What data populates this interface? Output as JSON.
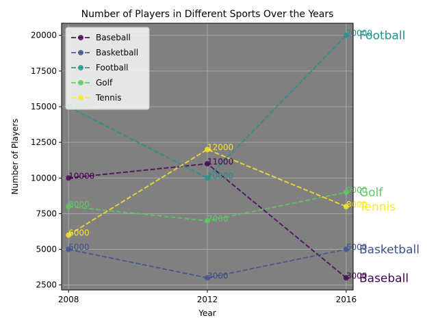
{
  "chart_data": {
    "type": "line",
    "title": "Number of Players in Different Sports Over the Years",
    "xlabel": "Year",
    "ylabel": "Number of Players",
    "x": [
      2008,
      2012,
      2016
    ],
    "x_tick_labels": [
      "2008",
      "2012",
      "2016"
    ],
    "ylim": [
      2150,
      20850
    ],
    "y_ticks": [
      2500,
      5000,
      7500,
      10000,
      12500,
      15000,
      17500,
      20000
    ],
    "y_tick_labels": [
      "2500",
      "5000",
      "7500",
      "10000",
      "12500",
      "15000",
      "17500",
      "20000"
    ],
    "grid": true,
    "legend_position": "top-left",
    "background_color": "#808080",
    "series": [
      {
        "name": "Baseball",
        "color": "#440154",
        "values": [
          10000,
          11000,
          3000
        ],
        "value_labels": [
          "10000",
          "11000",
          "3000"
        ]
      },
      {
        "name": "Basketball",
        "color": "#3b528b",
        "values": [
          5000,
          3000,
          5000
        ],
        "value_labels": [
          "5000",
          "3000",
          "5000"
        ]
      },
      {
        "name": "Football",
        "color": "#21918c",
        "values": [
          15000,
          10000,
          20000
        ],
        "value_labels": [
          "15000",
          "10000",
          "20000"
        ]
      },
      {
        "name": "Golf",
        "color": "#5ec962",
        "values": [
          8000,
          7000,
          9000
        ],
        "value_labels": [
          "8000",
          "7000",
          "9000"
        ]
      },
      {
        "name": "Tennis",
        "color": "#fde725",
        "values": [
          6000,
          12000,
          8000
        ],
        "value_labels": [
          "6000",
          "12000",
          "8000"
        ]
      }
    ]
  }
}
